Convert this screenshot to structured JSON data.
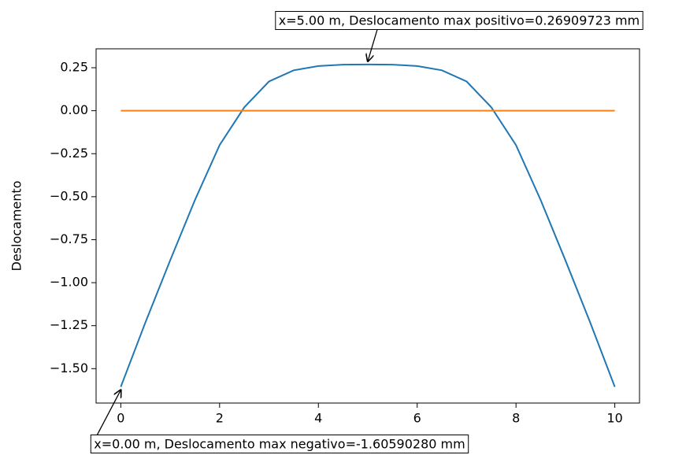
{
  "chart_data": {
    "type": "line",
    "ylabel": "Deslocamento",
    "x": [
      0,
      0.5,
      1,
      1.5,
      2,
      2.5,
      3,
      3.5,
      4,
      4.5,
      5,
      5.5,
      6,
      6.5,
      7,
      7.5,
      8,
      8.5,
      9,
      9.5,
      10
    ],
    "series": [
      {
        "color": "#1f77b4",
        "values": [
          -1.6059028,
          -1.23,
          -0.87,
          -0.52,
          -0.2,
          0.02,
          0.17,
          0.235,
          0.26,
          0.268,
          0.26909723,
          0.268,
          0.26,
          0.235,
          0.17,
          0.02,
          -0.2,
          -0.52,
          -0.87,
          -1.23,
          -1.6059028
        ]
      },
      {
        "color": "#ff7f0e",
        "values": [
          0,
          0,
          0,
          0,
          0,
          0,
          0,
          0,
          0,
          0,
          0,
          0,
          0,
          0,
          0,
          0,
          0,
          0,
          0,
          0,
          0
        ]
      }
    ],
    "xlim": [
      -0.5,
      10.5
    ],
    "ylim": [
      -1.7,
      0.36
    ],
    "xticks": [
      0,
      2,
      4,
      6,
      8,
      10
    ],
    "yticks": [
      0.25,
      {
        "value": 0,
        "label": "0.00"
      },
      {
        "value": -0.25,
        "label": "−0.25"
      },
      {
        "value": -0.5,
        "label": "−0.50"
      },
      {
        "value": -0.75,
        "label": "−0.75"
      },
      {
        "value": -1,
        "label": "−1.00"
      },
      {
        "value": -1.25,
        "label": "−1.25"
      },
      {
        "value": -1.5,
        "label": "−1.50"
      }
    ],
    "annotations": [
      {
        "text": "x=5.00 m, Deslocamento max positivo=0.26909723 mm",
        "series": 0,
        "index": 10
      },
      {
        "text": "x=0.00 m, Deslocamento max negativo=-1.60590280 mm",
        "series": 0,
        "index": 0
      }
    ]
  }
}
